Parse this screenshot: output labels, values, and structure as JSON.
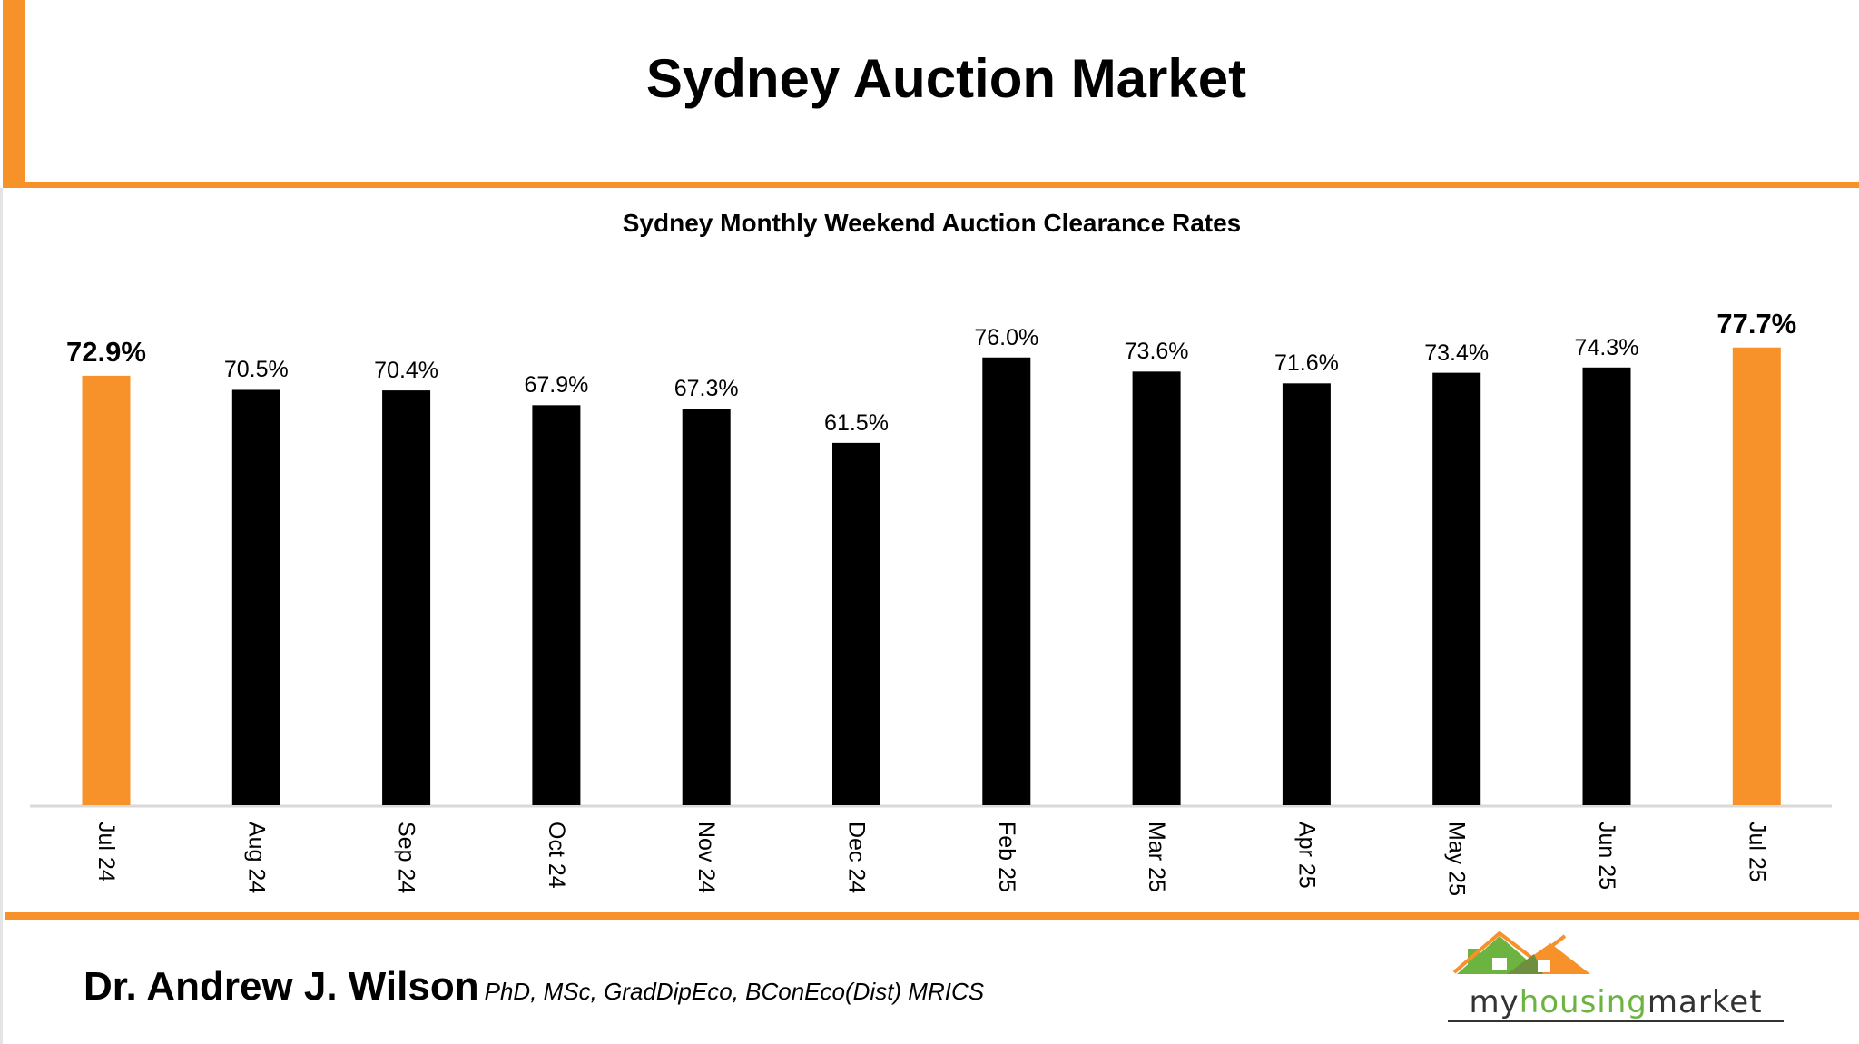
{
  "header": {
    "title": "Sydney Auction Market"
  },
  "chart_data": {
    "type": "bar",
    "title": "Sydney Monthly Weekend Auction Clearance Rates",
    "xlabel": "",
    "ylabel": "",
    "ylim": [
      0,
      80
    ],
    "grid": false,
    "categories": [
      "Jul 24",
      "Aug 24",
      "Sep 24",
      "Oct 24",
      "Nov 24",
      "Dec 24",
      "Feb 25",
      "Mar 25",
      "Apr 25",
      "May 25",
      "Jun 25",
      "Jul 25"
    ],
    "values": [
      72.9,
      70.5,
      70.4,
      67.9,
      67.3,
      61.5,
      76.0,
      73.6,
      71.6,
      73.4,
      74.3,
      77.7
    ],
    "labels": [
      "72.9%",
      "70.5%",
      "70.4%",
      "67.9%",
      "67.3%",
      "61.5%",
      "76.0%",
      "73.6%",
      "71.6%",
      "73.4%",
      "74.3%",
      "77.7%"
    ],
    "highlighted": [
      "Jul 24",
      "Jul 25"
    ],
    "colors": {
      "default": "#000000",
      "highlight": "#f7922a"
    }
  },
  "footer": {
    "author": "Dr. Andrew J. Wilson",
    "credentials": "PhD, MSc, GradDipEco, BConEco(Dist) MRICS",
    "logo_text": "myhousingmarket"
  },
  "theme": {
    "accent": "#f7922a",
    "logo_green": "#6cb43f"
  }
}
